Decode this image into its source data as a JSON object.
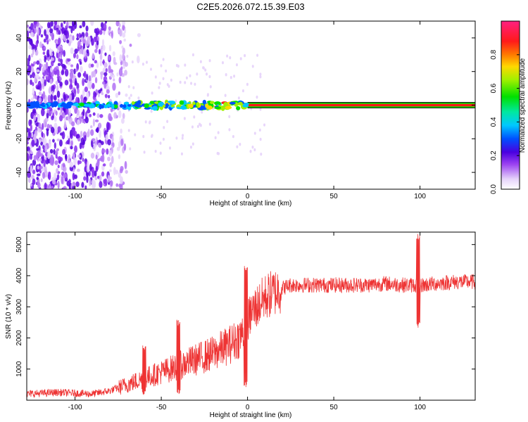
{
  "chart_data": [
    {
      "type": "heatmap",
      "title": "C2E5.2026.072.15.39.E03",
      "xlabel": "Height of straight line (km)",
      "ylabel": "Frequency (Hz)",
      "xlim": [
        -128,
        132
      ],
      "ylim": [
        -50,
        50
      ],
      "xticks": [
        -100,
        -50,
        0,
        50,
        100
      ],
      "xtick_labels": [
        "-100",
        "-50",
        "0",
        "50",
        "100"
      ],
      "yticks": [
        -40,
        -20,
        0,
        20,
        40
      ],
      "ytick_labels": [
        "-40",
        "-20",
        "0",
        "20",
        "40"
      ],
      "colorbar": {
        "label": "Normalized spectral amplitude",
        "range": [
          0.0,
          1.0
        ],
        "ticks": [
          0.0,
          0.2,
          0.4,
          0.6,
          0.8
        ],
        "tick_labels": [
          "0.0",
          "0.2",
          "0.4",
          "0.6",
          "0.8"
        ]
      },
      "features": {
        "noise_region_x": [
          -128,
          -70
        ],
        "carrier_frequency_hz": 0,
        "strong_carrier_start_x": 0
      }
    },
    {
      "type": "line",
      "title": "",
      "xlabel": "Height of straight line (km)",
      "ylabel": "SNR (10 * v/v)",
      "xlim": [
        -128,
        132
      ],
      "ylim": [
        0,
        5400
      ],
      "xticks": [
        -100,
        -50,
        0,
        50,
        100
      ],
      "xtick_labels": [
        "-100",
        "-50",
        "0",
        "50",
        "100"
      ],
      "yticks": [
        1000,
        2000,
        3000,
        4000,
        5000
      ],
      "ytick_labels": [
        "1000",
        "2000",
        "3000",
        "4000",
        "5000"
      ],
      "color": "#ee3333",
      "series": [
        {
          "name": "SNR",
          "x": [
            -128,
            -110,
            -90,
            -80,
            -70,
            -60,
            -50,
            -40,
            -30,
            -20,
            -10,
            -5,
            -1,
            0,
            2,
            10,
            20,
            25,
            30,
            40,
            50,
            60,
            70,
            80,
            90,
            98,
            100,
            102,
            110,
            120,
            132
          ],
          "values": [
            200,
            250,
            200,
            300,
            500,
            700,
            900,
            1100,
            1300,
            1500,
            1800,
            2000,
            2300,
            2500,
            2800,
            3300,
            3600,
            3700,
            3700,
            3700,
            3700,
            3700,
            3700,
            3750,
            3700,
            3700,
            3700,
            3700,
            3750,
            3800,
            3800
          ],
          "spikes": [
            {
              "x": -1,
              "min": 400,
              "max": 4350
            },
            {
              "x": 99,
              "min": 2300,
              "max": 5350
            },
            {
              "x": -60,
              "min": 150,
              "max": 1800
            },
            {
              "x": -40,
              "min": 150,
              "max": 2600
            }
          ]
        }
      ]
    }
  ]
}
